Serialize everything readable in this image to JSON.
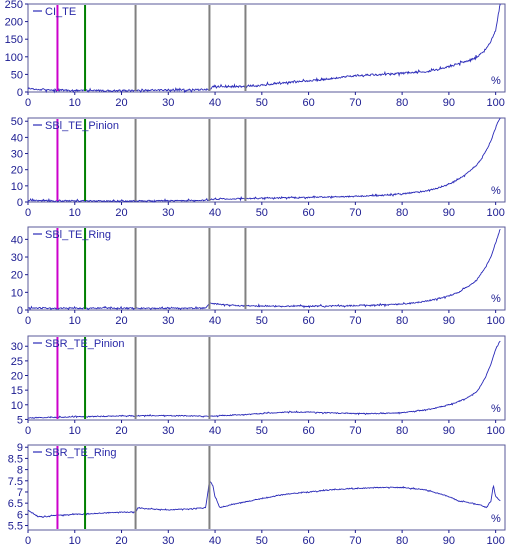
{
  "colors": {
    "series": "#2a2ab8",
    "axis": "#1a1a90",
    "grid": "#dcdcdc",
    "frame": "#5a5a9a",
    "markers": {
      "magenta": "#cc00cc",
      "green": "#008000",
      "gray": "#808080"
    }
  },
  "chart_data": [
    {
      "type": "line",
      "series": [
        {
          "name": "CI_TE",
          "x": [
            0,
            2,
            4,
            6,
            8,
            10,
            15,
            20,
            22,
            24,
            25,
            30,
            35,
            38,
            39,
            39.5,
            40,
            45,
            46.8,
            47,
            50,
            55,
            60,
            65,
            68,
            70,
            75,
            80,
            82,
            85,
            88,
            90,
            92,
            94,
            96,
            97,
            98,
            99,
            100,
            100.5,
            101
          ],
          "y": [
            10,
            8,
            7,
            6,
            5,
            5,
            4,
            4,
            4,
            4,
            5,
            6,
            6,
            7,
            7,
            17,
            16,
            15,
            15,
            18,
            19,
            26,
            32,
            38,
            44,
            47,
            49,
            53,
            56,
            58,
            64,
            72,
            80,
            88,
            100,
            110,
            125,
            145,
            175,
            210,
            255
          ]
        }
      ],
      "xlim": [
        0,
        102
      ],
      "ylim": [
        0,
        250
      ],
      "xticks": [
        0,
        10,
        20,
        30,
        40,
        50,
        60,
        70,
        80,
        90,
        100
      ],
      "yticks": [
        0,
        50,
        100,
        150,
        200,
        250
      ],
      "unit_label": "%",
      "markers": [
        {
          "x": 6.3,
          "color": "magenta"
        },
        {
          "x": 12.2,
          "color": "green"
        },
        {
          "x": 23,
          "color": "gray"
        },
        {
          "x": 38.8,
          "color": "gray"
        },
        {
          "x": 46.5,
          "color": "gray"
        }
      ],
      "noise": 0.5,
      "seed": 3
    },
    {
      "type": "line",
      "series": [
        {
          "name": "SBl_TE_Pinion",
          "x": [
            0,
            5,
            10,
            15,
            20,
            25,
            30,
            35,
            38,
            39,
            40,
            45,
            50,
            55,
            60,
            65,
            70,
            75,
            80,
            84,
            87,
            90,
            92,
            94,
            96,
            97,
            98,
            99,
            100,
            101
          ],
          "y": [
            1,
            0.8,
            0.7,
            0.6,
            0.6,
            0.7,
            0.8,
            0.9,
            1,
            1.5,
            1.8,
            2,
            2.3,
            2.6,
            2.8,
            3.2,
            3.5,
            4,
            5,
            6.5,
            8,
            11,
            14,
            18,
            23,
            27,
            32,
            38,
            46,
            53
          ]
        }
      ],
      "xlim": [
        0,
        102
      ],
      "ylim": [
        0,
        52
      ],
      "xticks": [
        0,
        10,
        20,
        30,
        40,
        50,
        60,
        70,
        80,
        90,
        100
      ],
      "yticks": [
        0,
        10,
        20,
        30,
        40,
        50
      ],
      "unit_label": "%",
      "markers": [
        {
          "x": 6.3,
          "color": "magenta"
        },
        {
          "x": 12.2,
          "color": "green"
        },
        {
          "x": 23,
          "color": "gray"
        },
        {
          "x": 38.8,
          "color": "gray"
        },
        {
          "x": 46.5,
          "color": "gray"
        }
      ],
      "noise": 0.35,
      "seed": 7
    },
    {
      "type": "line",
      "series": [
        {
          "name": "SBl_TE_Ring",
          "x": [
            0,
            5,
            10,
            15,
            20,
            25,
            30,
            35,
            38,
            39,
            40,
            45,
            50,
            55,
            60,
            65,
            70,
            75,
            80,
            84,
            87,
            90,
            92,
            94,
            96,
            97,
            98,
            99,
            100,
            101
          ],
          "y": [
            1.2,
            1,
            1,
            1,
            1,
            1,
            1,
            1,
            1.2,
            4,
            3.5,
            2.4,
            2.2,
            2.2,
            2.2,
            2.3,
            2.5,
            2.8,
            3.3,
            4.5,
            6,
            8,
            10,
            13,
            17,
            21,
            25,
            30,
            38,
            46
          ]
        }
      ],
      "xlim": [
        0,
        102
      ],
      "ylim": [
        0,
        47
      ],
      "xticks": [
        0,
        10,
        20,
        30,
        40,
        50,
        60,
        70,
        80,
        90,
        100
      ],
      "yticks": [
        0,
        10,
        20,
        30,
        40
      ],
      "unit_label": "%",
      "markers": [
        {
          "x": 6.3,
          "color": "magenta"
        },
        {
          "x": 12.2,
          "color": "green"
        },
        {
          "x": 23,
          "color": "gray"
        },
        {
          "x": 38.8,
          "color": "gray"
        },
        {
          "x": 46.5,
          "color": "gray"
        }
      ],
      "noise": 0.35,
      "seed": 11
    },
    {
      "type": "line",
      "series": [
        {
          "name": "SBR_TE_Pinion",
          "x": [
            0,
            5,
            10,
            15,
            20,
            25,
            30,
            35,
            38,
            39,
            40,
            45,
            50,
            55,
            60,
            65,
            70,
            75,
            80,
            84,
            87,
            90,
            92,
            94,
            96,
            97,
            98,
            99,
            100,
            101
          ],
          "y": [
            5.5,
            5.7,
            5.9,
            6,
            6.2,
            6.3,
            6.3,
            6.2,
            6.1,
            6.1,
            6.2,
            6.5,
            7,
            7.5,
            7.5,
            7.2,
            7,
            7,
            7.3,
            8,
            8.8,
            10,
            11,
            12.5,
            14.5,
            17,
            20,
            24,
            29,
            32
          ]
        }
      ],
      "xlim": [
        0,
        102
      ],
      "ylim": [
        4.8,
        33.5
      ],
      "xticks": [
        0,
        10,
        20,
        30,
        40,
        50,
        60,
        70,
        80,
        90,
        100
      ],
      "yticks": [
        5,
        10,
        15,
        20,
        25,
        30
      ],
      "unit_label": "%",
      "markers": [
        {
          "x": 6.3,
          "color": "magenta"
        },
        {
          "x": 12.2,
          "color": "green"
        },
        {
          "x": 23,
          "color": "gray"
        },
        {
          "x": 38.8,
          "color": "gray"
        }
      ],
      "noise": 0.25,
      "seed": 17
    },
    {
      "type": "line",
      "series": [
        {
          "name": "SBR_TE_Ring",
          "x": [
            0,
            2,
            4,
            6,
            10,
            15,
            20,
            23,
            23.5,
            25,
            30,
            35,
            38,
            38.8,
            39.5,
            40,
            41,
            43,
            45,
            50,
            55,
            60,
            65,
            70,
            75,
            80,
            85,
            90,
            92,
            95,
            97,
            98,
            99,
            99.5,
            100,
            101
          ],
          "y": [
            6.2,
            5.9,
            5.9,
            5.95,
            6,
            6.05,
            6.1,
            6.1,
            6.3,
            6.25,
            6.2,
            6.25,
            6.3,
            7.5,
            7.3,
            6.8,
            6.3,
            6.4,
            6.5,
            6.7,
            6.9,
            7,
            7.1,
            7.15,
            7.2,
            7.2,
            7.1,
            6.8,
            6.6,
            6.5,
            6.4,
            6.3,
            6.6,
            7.3,
            6.8,
            6.6
          ]
        }
      ],
      "xlim": [
        0,
        102
      ],
      "ylim": [
        5.3,
        9.1
      ],
      "xticks": [
        0,
        10,
        20,
        30,
        40,
        50,
        60,
        70,
        80,
        90,
        100
      ],
      "yticks": [
        5.5,
        6.0,
        6.5,
        7.0,
        7.5,
        8.0,
        8.5,
        9.0
      ],
      "unit_label": "%",
      "markers": [
        {
          "x": 6.3,
          "color": "magenta"
        },
        {
          "x": 12.2,
          "color": "green"
        },
        {
          "x": 23,
          "color": "gray"
        },
        {
          "x": 38.8,
          "color": "gray"
        }
      ],
      "noise": 0.22,
      "seed": 23
    }
  ]
}
